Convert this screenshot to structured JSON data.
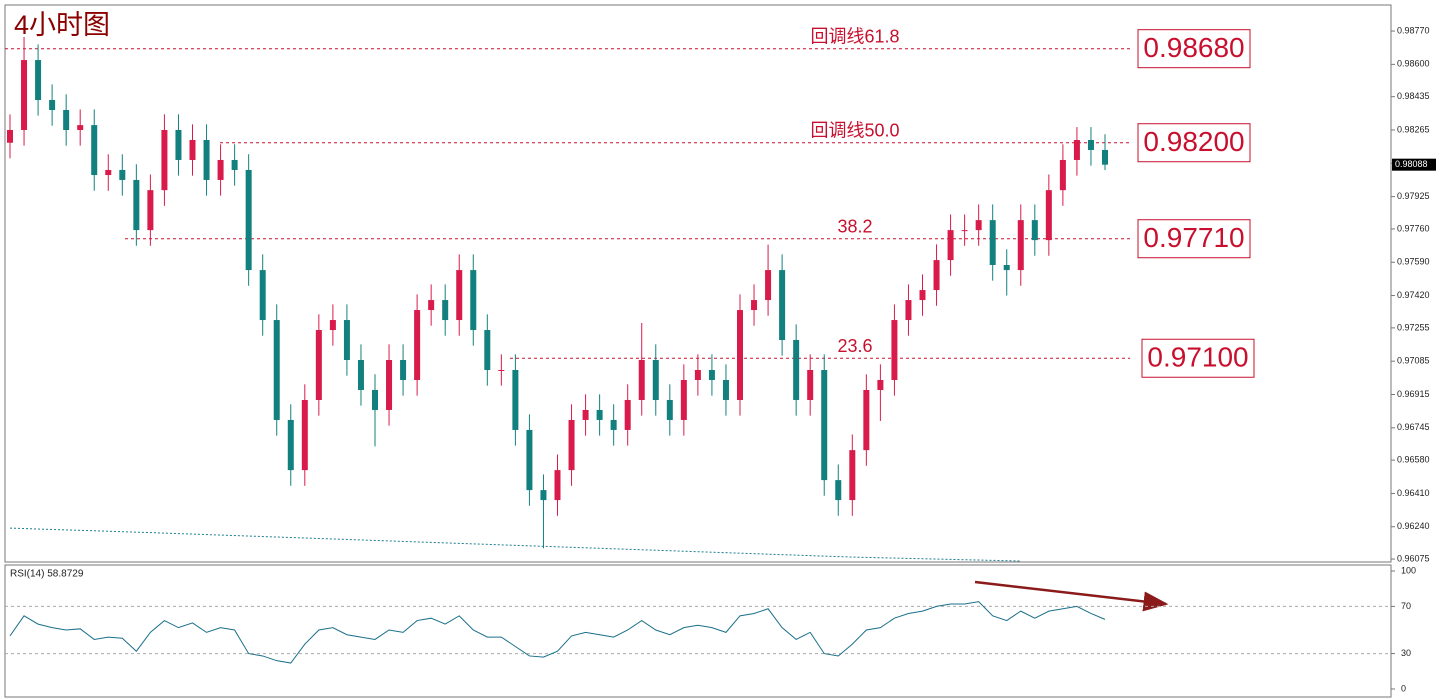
{
  "chart_data": [
    {
      "type": "candlestick",
      "title": "4小时图",
      "open": [
        0.982,
        0.98265,
        0.98622,
        0.98418,
        0.98367,
        0.98265,
        0.9829,
        0.98035,
        0.98061,
        0.9801,
        0.97754,
        0.97958,
        0.98265,
        0.98112,
        0.98214,
        0.9801,
        0.98112,
        0.98061,
        0.9755,
        0.97295,
        0.96785,
        0.96529,
        0.96887,
        0.97244,
        0.97295,
        0.97091,
        0.96938,
        0.96836,
        0.97091,
        0.96989,
        0.97346,
        0.97397,
        0.97295,
        0.9755,
        0.97244,
        0.9704,
        0.9704,
        0.96734,
        0.96427,
        0.96376,
        0.96529,
        0.96785,
        0.96836,
        0.96785,
        0.96734,
        0.96887,
        0.97091,
        0.96887,
        0.96785,
        0.96989,
        0.9704,
        0.96989,
        0.96887,
        0.97346,
        0.97397,
        0.9755,
        0.97193,
        0.96887,
        0.9704,
        0.96478,
        0.96376,
        0.96631,
        0.96938,
        0.96989,
        0.97295,
        0.97397,
        0.97448,
        0.97601,
        0.97754,
        0.97754,
        0.97805,
        0.97576,
        0.9755,
        0.97805,
        0.97703,
        0.97958,
        0.98112,
        0.98214,
        0.98163
      ],
      "high": [
        0.98345,
        0.9874,
        0.98702,
        0.98498,
        0.98447,
        0.9837,
        0.9837,
        0.98141,
        0.98141,
        0.9809,
        0.98038,
        0.98345,
        0.98345,
        0.98294,
        0.98294,
        0.98192,
        0.98192,
        0.98141,
        0.9763,
        0.97375,
        0.96865,
        0.96967,
        0.97324,
        0.97375,
        0.97375,
        0.97171,
        0.97018,
        0.97171,
        0.97171,
        0.97426,
        0.97477,
        0.97477,
        0.9763,
        0.9763,
        0.97324,
        0.9712,
        0.9712,
        0.96814,
        0.96507,
        0.96609,
        0.96865,
        0.96916,
        0.96916,
        0.96865,
        0.96967,
        0.9728,
        0.97171,
        0.96967,
        0.97069,
        0.9712,
        0.9712,
        0.97069,
        0.97426,
        0.97477,
        0.9768,
        0.9763,
        0.97273,
        0.9712,
        0.9712,
        0.96558,
        0.96711,
        0.97018,
        0.97069,
        0.97375,
        0.97477,
        0.97528,
        0.97681,
        0.97834,
        0.97834,
        0.97885,
        0.97885,
        0.97656,
        0.97885,
        0.97885,
        0.98038,
        0.98192,
        0.9828,
        0.9828,
        0.98243
      ],
      "low": [
        0.9812,
        0.98185,
        0.98338,
        0.98287,
        0.98185,
        0.98185,
        0.97955,
        0.97955,
        0.9793,
        0.97674,
        0.97674,
        0.97878,
        0.98032,
        0.98032,
        0.9793,
        0.9793,
        0.97981,
        0.9747,
        0.97215,
        0.96705,
        0.96449,
        0.96449,
        0.96807,
        0.97164,
        0.97011,
        0.96858,
        0.9665,
        0.96756,
        0.96909,
        0.96909,
        0.97266,
        0.97215,
        0.97215,
        0.97164,
        0.9696,
        0.9696,
        0.96654,
        0.96347,
        0.9613,
        0.96296,
        0.96449,
        0.96705,
        0.96705,
        0.96654,
        0.96654,
        0.96807,
        0.96807,
        0.96705,
        0.96705,
        0.96909,
        0.96909,
        0.96807,
        0.96807,
        0.97266,
        0.97317,
        0.97113,
        0.96807,
        0.96807,
        0.96398,
        0.96296,
        0.96296,
        0.96551,
        0.9678,
        0.96909,
        0.97215,
        0.97317,
        0.97368,
        0.97521,
        0.97674,
        0.97674,
        0.97496,
        0.9742,
        0.9747,
        0.97623,
        0.97623,
        0.97878,
        0.98032,
        0.98083,
        0.9806
      ],
      "close": [
        0.98265,
        0.98622,
        0.98418,
        0.98367,
        0.98265,
        0.9829,
        0.98035,
        0.98061,
        0.9801,
        0.97754,
        0.97958,
        0.98265,
        0.98112,
        0.98214,
        0.9801,
        0.98112,
        0.98061,
        0.9755,
        0.97295,
        0.96785,
        0.96529,
        0.96887,
        0.97244,
        0.97295,
        0.97091,
        0.96938,
        0.96836,
        0.97091,
        0.96989,
        0.97346,
        0.97397,
        0.97295,
        0.9755,
        0.97244,
        0.9704,
        0.9704,
        0.96734,
        0.96427,
        0.96376,
        0.96529,
        0.96785,
        0.96836,
        0.96785,
        0.96734,
        0.96887,
        0.97091,
        0.96887,
        0.96785,
        0.96989,
        0.9704,
        0.96989,
        0.96887,
        0.97346,
        0.97397,
        0.9755,
        0.97193,
        0.96887,
        0.9704,
        0.96478,
        0.96376,
        0.96631,
        0.96938,
        0.96989,
        0.97295,
        0.97397,
        0.97448,
        0.97601,
        0.97754,
        0.97754,
        0.97805,
        0.97576,
        0.9755,
        0.97805,
        0.97703,
        0.97958,
        0.98112,
        0.98214,
        0.98163,
        0.98088
      ],
      "up_color": "#d81b4a",
      "down_color": "#12807e",
      "ma": {
        "x": [
          0,
          10,
          20,
          30,
          40,
          50,
          60,
          72
        ],
        "values": [
          0.96233,
          0.9621,
          0.96185,
          0.9616,
          0.96135,
          0.9611,
          0.96085,
          0.96065
        ],
        "color": "#1a7f8f"
      },
      "ylim": [
        0.9606,
        0.98903
      ],
      "yticks": [
        {
          "value": 0.9877,
          "label": "0.98770"
        },
        {
          "value": 0.986,
          "label": "0.98600"
        },
        {
          "value": 0.98435,
          "label": "0.98435"
        },
        {
          "value": 0.98265,
          "label": "0.98265"
        },
        {
          "value": 0.98095,
          "label": "0.98095"
        },
        {
          "value": 0.97925,
          "label": "0.97925"
        },
        {
          "value": 0.9776,
          "label": "0.97760"
        },
        {
          "value": 0.9759,
          "label": "0.97590"
        },
        {
          "value": 0.9742,
          "label": "0.97420"
        },
        {
          "value": 0.97255,
          "label": "0.97255"
        },
        {
          "value": 0.97085,
          "label": "0.97085"
        },
        {
          "value": 0.96915,
          "label": "0.96915"
        },
        {
          "value": 0.96745,
          "label": "0.96745"
        },
        {
          "value": 0.9658,
          "label": "0.96580"
        },
        {
          "value": 0.9641,
          "label": "0.96410"
        },
        {
          "value": 0.9624,
          "label": "0.96240"
        },
        {
          "value": 0.96075,
          "label": "0.96075"
        }
      ],
      "last_price": {
        "value": 0.98088,
        "label": "0.98088"
      },
      "levels": [
        {
          "value": 0.9868,
          "label": "0.98680",
          "name": "回调线61.8"
        },
        {
          "value": 0.982,
          "label": "0.98200",
          "name": "回调线50.0"
        },
        {
          "value": 0.9771,
          "label": "0.97710",
          "name": "38.2"
        },
        {
          "value": 0.971,
          "label": "0.97100",
          "name": "23.6"
        }
      ],
      "level_color": "#c8102e"
    },
    {
      "type": "line",
      "title": "RSI(14) 58.8729",
      "values": [
        45,
        62,
        55,
        52,
        50,
        51,
        42,
        44,
        43,
        32,
        48,
        58,
        52,
        56,
        48,
        52,
        50,
        30,
        28,
        24,
        22,
        38,
        50,
        52,
        46,
        44,
        42,
        50,
        48,
        58,
        60,
        55,
        62,
        50,
        44,
        44,
        36,
        28,
        27,
        32,
        45,
        48,
        46,
        44,
        50,
        58,
        50,
        46,
        52,
        54,
        52,
        48,
        62,
        64,
        68,
        52,
        42,
        48,
        30,
        28,
        38,
        50,
        52,
        60,
        64,
        66,
        70,
        72,
        72,
        74,
        62,
        58,
        66,
        60,
        66,
        68,
        70,
        64,
        59
      ],
      "color": "#1a6f8a",
      "ylim": [
        -6.8,
        105.1
      ],
      "yticks": [
        100,
        70,
        30,
        0
      ],
      "grid_ticks": [
        70,
        30
      ]
    }
  ]
}
